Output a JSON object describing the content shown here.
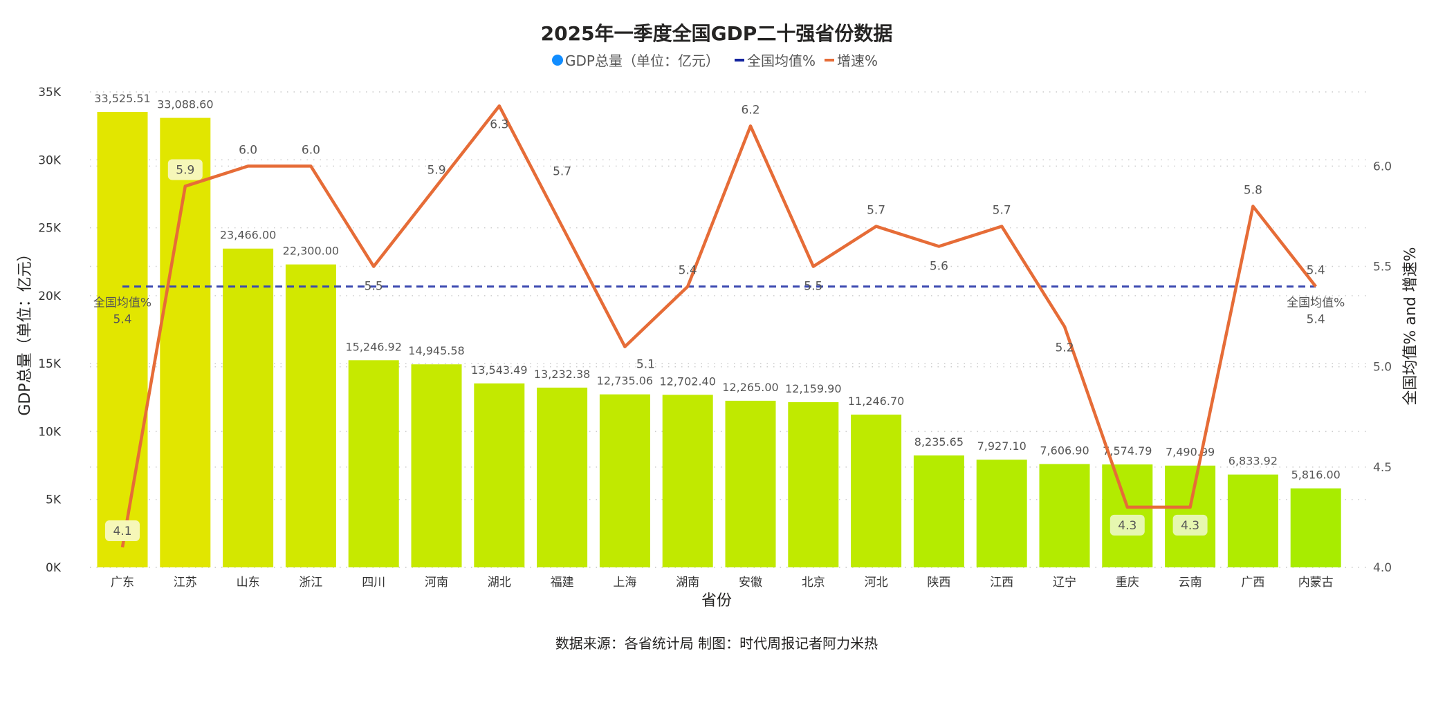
{
  "title": "2025年一季度全国GDP二十强省份数据",
  "legend": [
    {
      "label": "GDP总量（单位：亿元）",
      "color": "#118DFF",
      "icon": "circle-icon"
    },
    {
      "label": "全国均值%",
      "color": "#12239E",
      "icon": "line-icon"
    },
    {
      "label": "增速%",
      "color": "#E66C37",
      "icon": "line-icon"
    }
  ],
  "footer": "数据来源：各省统计局 制图：时代周报记者阿力米热",
  "chart_data": {
    "type": "bar+line",
    "title": "2025年一季度全国GDP二十强省份数据",
    "xlabel": "省份",
    "ylabel": "GDP总量（单位：亿元）",
    "y2label": "全国均值% and 增速%",
    "ylim": [
      0,
      35000
    ],
    "y2lim": [
      4.0,
      6.37
    ],
    "yticks": [
      "0K",
      "5K",
      "10K",
      "15K",
      "20K",
      "25K",
      "30K",
      "35K"
    ],
    "y2ticks": [
      "4.0",
      "4.5",
      "5.0",
      "5.5",
      "6.0"
    ],
    "grid": true,
    "legend_position": "top-center",
    "categories": [
      "广东",
      "江苏",
      "山东",
      "浙江",
      "四川",
      "河南",
      "湖北",
      "福建",
      "上海",
      "湖南",
      "安徽",
      "北京",
      "河北",
      "陕西",
      "江西",
      "辽宁",
      "重庆",
      "云南",
      "广西",
      "内蒙古"
    ],
    "series": [
      {
        "name": "GDP总量（单位：亿元）",
        "type": "bar",
        "values": [
          33525.51,
          33088.6,
          23466.0,
          22300.0,
          15246.92,
          14945.58,
          13543.49,
          13232.38,
          12735.06,
          12702.4,
          12265.0,
          12159.9,
          11246.7,
          8235.65,
          7927.1,
          7606.9,
          7574.79,
          7490.99,
          6833.92,
          5816.0
        ],
        "labels": [
          "33,525.51",
          "33,088.60",
          "23,466.00",
          "22,300.00",
          "15,246.92",
          "14,945.58",
          "13,543.49",
          "13,232.38",
          "12,735.06",
          "12,702.40",
          "12,265.00",
          "12,159.90",
          "11,246.70",
          "8,235.65",
          "7,927.10",
          "7,606.90",
          "7,574.79",
          "7,490.99",
          "6,833.92",
          "5,816.00"
        ],
        "color_high": "#E2E600",
        "color_low": "#A8EC00"
      },
      {
        "name": "增速%",
        "type": "line",
        "color": "#E66C37",
        "values": [
          4.1,
          5.9,
          6.0,
          6.0,
          5.5,
          5.9,
          6.3,
          5.7,
          5.1,
          5.4,
          6.2,
          5.5,
          5.7,
          5.6,
          5.7,
          5.2,
          4.3,
          4.3,
          5.8,
          5.4
        ],
        "labels": [
          "4.1",
          "5.9",
          "6.0",
          "6.0",
          "5.5",
          "5.9",
          "6.3",
          "5.7",
          "5.1",
          "5.4",
          "6.2",
          "5.5",
          "5.7",
          "5.6",
          "5.7",
          "5.2",
          "4.3",
          "4.3",
          "5.8",
          "5.4"
        ]
      },
      {
        "name": "全国均值%",
        "type": "line",
        "color": "#3A48B0",
        "value": 5.4,
        "label": "5.4",
        "annotation": "全国均值%"
      }
    ]
  }
}
